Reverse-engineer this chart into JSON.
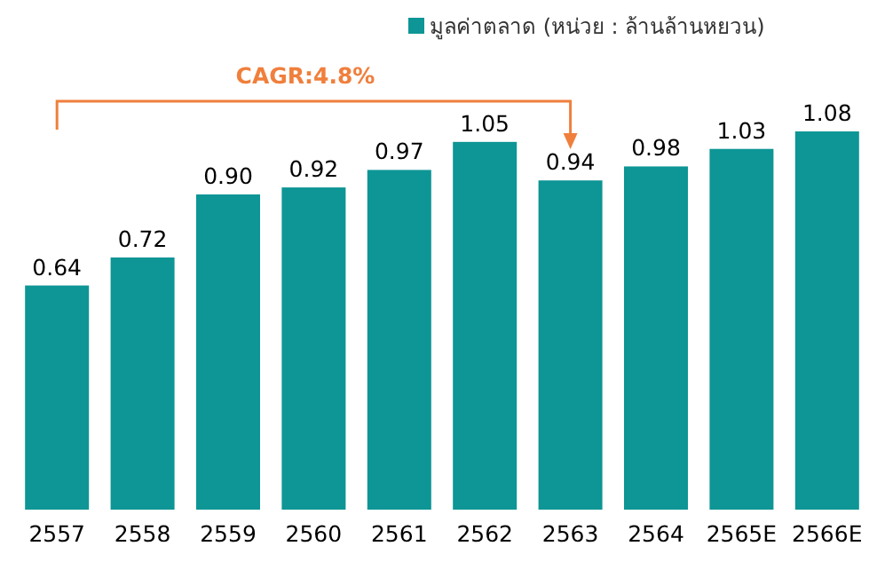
{
  "chart_data": {
    "type": "bar",
    "categories": [
      "2557",
      "2558",
      "2559",
      "2560",
      "2561",
      "2562",
      "2563",
      "2564",
      "2565E",
      "2566E"
    ],
    "series": [
      {
        "name": "มูลค่าตลาด (หน่วย : ล้านล้านหยวน)",
        "color": "#0e9595",
        "values": [
          0.64,
          0.72,
          0.9,
          0.92,
          0.97,
          1.05,
          0.94,
          0.98,
          1.03,
          1.08
        ],
        "value_labels": [
          "0.64",
          "0.72",
          "0.90",
          "0.92",
          "0.97",
          "1.05",
          "0.94",
          "0.98",
          "1.03",
          "1.08"
        ]
      }
    ],
    "legend": "top",
    "annotations": [
      "CAGR:4.8%"
    ]
  }
}
